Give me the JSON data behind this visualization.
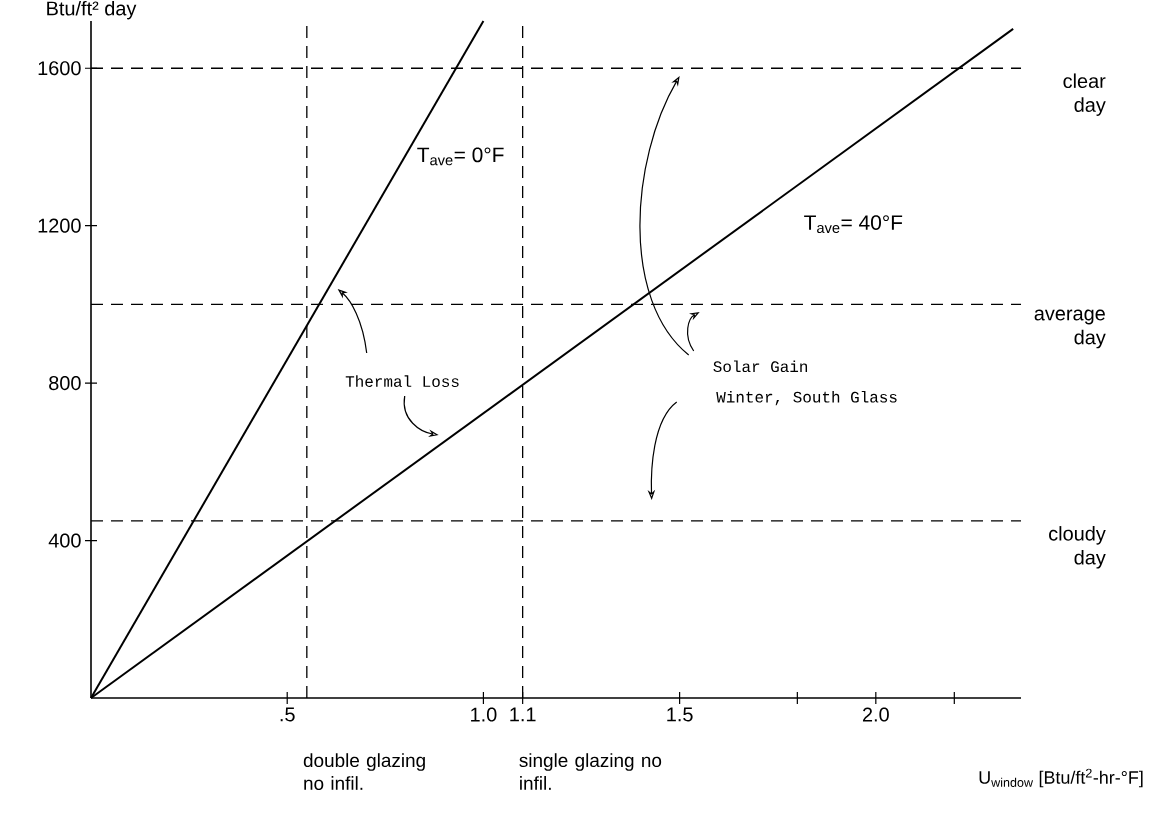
{
  "chart_data": {
    "type": "line",
    "xlabel": "U$_{window}$ [Btu/ft$^{2}$-hr-°F]",
    "ylabel": "Btu/ft² day",
    "series": [
      {
        "name": "T$_{ave}$= 0°F",
        "color": "#000000",
        "x": [
          0,
          1.0
        ],
        "values": [
          0,
          1720
        ]
      },
      {
        "name": "T$_{ave}$= 40°F",
        "color": "#000000",
        "x": [
          0,
          2.35
        ],
        "values": [
          0,
          1700
        ]
      }
    ],
    "xlim": [
      0,
      2.37
    ],
    "ylim": [
      0,
      1720
    ],
    "xticks": [
      {
        "value": 0.5,
        "label": ".5"
      },
      {
        "value": 1.0,
        "label": "1.0"
      },
      {
        "value": 1.1,
        "label": "1.1"
      },
      1.5,
      {
        "value": 1.8,
        "label": null
      },
      {
        "value": 2.0,
        "label": "2.0"
      },
      {
        "value": 2.2,
        "label": null
      }
    ],
    "yticks": [
      400,
      800,
      1200,
      1600
    ],
    "ref_lines": [
      {
        "axis": "y",
        "value": 1600,
        "label": "clear day",
        "color": "#000000",
        "line_style": "dashed"
      },
      {
        "axis": "y",
        "value": 1000,
        "label": "average day",
        "color": "#000000",
        "line_style": "dashed"
      },
      {
        "axis": "y",
        "value": 450,
        "label": "cloudy day",
        "color": "#000000",
        "line_style": "dashed"
      },
      {
        "axis": "x",
        "value": 0.55,
        "label": "double glazing no infil.",
        "color": "#000000",
        "line_style": "dashed"
      },
      {
        "axis": "x",
        "value": 1.1,
        "label": "single glazing no infil.",
        "color": "#000000",
        "line_style": "dashed"
      }
    ],
    "annotations": [
      "Thermal Loss",
      "Solar Gain",
      "Winter, South Glass"
    ]
  }
}
